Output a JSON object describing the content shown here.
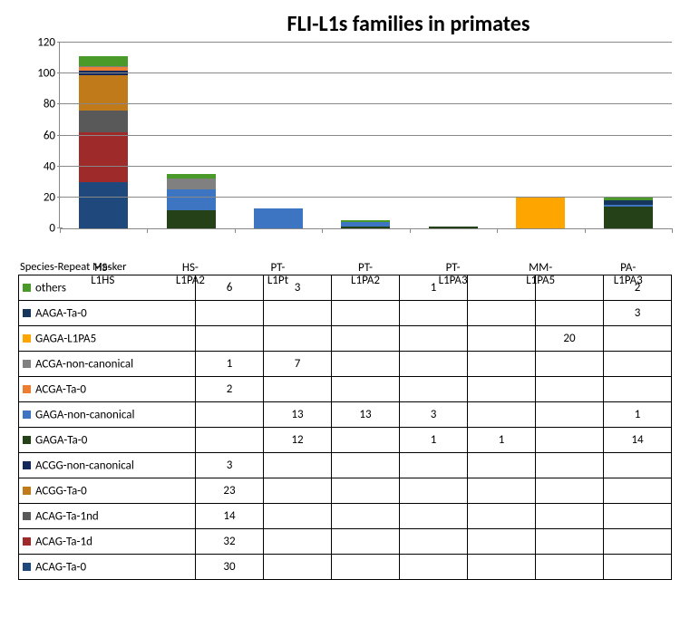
{
  "title": "FLI-L1s families in primates",
  "row_header": "Species-Repeat Masker",
  "background_color": "#ffffff",
  "grid_color": "#888888",
  "axis_color": "#888888",
  "title_fontsize": 24,
  "label_fontsize": 13,
  "y_axis": {
    "min": 0,
    "max": 120,
    "step": 20,
    "ticks": [
      0,
      20,
      40,
      60,
      80,
      100,
      120
    ]
  },
  "categories": [
    {
      "id": "HS-L1HS",
      "line1": "HS-",
      "line2": "L1HS"
    },
    {
      "id": "HS-L1PA2",
      "line1": "HS-",
      "line2": "L1PA2"
    },
    {
      "id": "PT-L1Pt",
      "line1": "PT-",
      "line2": "L1Pt"
    },
    {
      "id": "PT-L1PA2",
      "line1": "PT-",
      "line2": "L1PA2"
    },
    {
      "id": "PT-L1PA3",
      "line1": "PT-",
      "line2": "L1PA3"
    },
    {
      "id": "MM-L1PA5",
      "line1": "MM-",
      "line2": "L1PA5"
    },
    {
      "id": "PA-L1PA3",
      "line1": "PA-",
      "line2": "L1PA3"
    }
  ],
  "series": [
    {
      "key": "ACAG-Ta-0",
      "label": "ACAG-Ta-0",
      "color": "#1f497d",
      "values": [
        30,
        null,
        null,
        null,
        null,
        null,
        null
      ]
    },
    {
      "key": "ACAG-Ta-1d",
      "label": "ACAG-Ta-1d",
      "color": "#9e2a2a",
      "values": [
        32,
        null,
        null,
        null,
        null,
        null,
        null
      ]
    },
    {
      "key": "ACAG-Ta-1nd",
      "label": "ACAG-Ta-1nd",
      "color": "#595959",
      "values": [
        14,
        null,
        null,
        null,
        null,
        null,
        null
      ]
    },
    {
      "key": "ACGG-Ta-0",
      "label": "ACGG-Ta-0",
      "color": "#c07a1a",
      "values": [
        23,
        null,
        null,
        null,
        null,
        null,
        null
      ]
    },
    {
      "key": "ACGG-non-canonical",
      "label": "ACGG-non-canonical",
      "color": "#142a5c",
      "values": [
        3,
        null,
        null,
        null,
        null,
        null,
        null
      ]
    },
    {
      "key": "GAGA-Ta-0",
      "label": "GAGA-Ta-0",
      "color": "#254117",
      "values": [
        null,
        12,
        null,
        1,
        1,
        null,
        14
      ]
    },
    {
      "key": "GAGA-non-canonical",
      "label": "GAGA-non-canonical",
      "color": "#3d75c2",
      "values": [
        null,
        13,
        13,
        3,
        null,
        null,
        1
      ]
    },
    {
      "key": "ACGA-Ta-0",
      "label": "ACGA-Ta-0",
      "color": "#ed7d31",
      "values": [
        2,
        null,
        null,
        null,
        null,
        null,
        null
      ]
    },
    {
      "key": "ACGA-non-canonical",
      "label": "ACGA-non-canonical",
      "color": "#808080",
      "values": [
        1,
        7,
        null,
        null,
        null,
        null,
        null
      ]
    },
    {
      "key": "GAGA-L1PA5",
      "label": "GAGA-L1PA5",
      "color": "#ffa500",
      "values": [
        null,
        null,
        null,
        null,
        null,
        20,
        null
      ]
    },
    {
      "key": "AAGA-Ta-0",
      "label": "AAGA-Ta-0",
      "color": "#16365c",
      "values": [
        null,
        null,
        null,
        null,
        null,
        null,
        3
      ]
    },
    {
      "key": "others",
      "label": "others",
      "color": "#4a9a2a",
      "values": [
        6,
        3,
        null,
        1,
        null,
        null,
        2
      ]
    }
  ]
}
